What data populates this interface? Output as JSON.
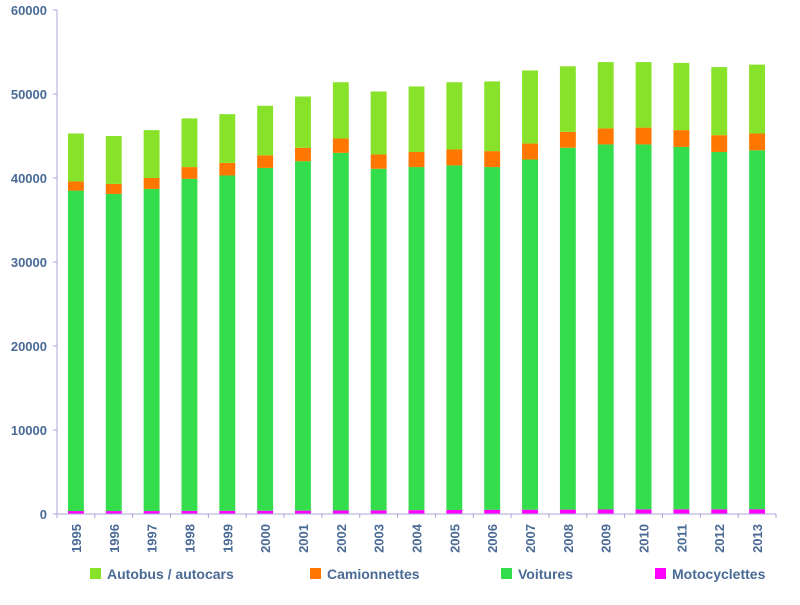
{
  "chart_data": {
    "type": "bar",
    "stacked": true,
    "title": "",
    "xlabel": "",
    "ylabel": "",
    "ylim": [
      0,
      60000
    ],
    "yticks": [
      0,
      10000,
      20000,
      30000,
      40000,
      50000,
      60000
    ],
    "grid": false,
    "legend_position": "bottom",
    "categories": [
      "1995",
      "1996",
      "1997",
      "1998",
      "1999",
      "2000",
      "2001",
      "2002",
      "2003",
      "2004",
      "2005",
      "2006",
      "2007",
      "2008",
      "2009",
      "2010",
      "2011",
      "2012",
      "2013"
    ],
    "series": [
      {
        "name": "Motocyclettes",
        "color": "#ff00ff",
        "values": [
          350,
          350,
          350,
          370,
          380,
          390,
          400,
          420,
          440,
          460,
          480,
          500,
          510,
          520,
          540,
          550,
          560,
          560,
          570
        ]
      },
      {
        "name": "Voitures",
        "color": "#33dd4c",
        "values": [
          38150,
          37750,
          38350,
          39530,
          39920,
          40810,
          41600,
          42580,
          40660,
          40840,
          41020,
          40800,
          41690,
          43080,
          43460,
          43450,
          43140,
          42540,
          42730
        ]
      },
      {
        "name": "Camionnettes",
        "color": "#ff7700",
        "values": [
          1100,
          1200,
          1300,
          1400,
          1500,
          1500,
          1600,
          1700,
          1700,
          1800,
          1900,
          1900,
          1900,
          1900,
          1900,
          2000,
          2000,
          2000,
          2000
        ]
      },
      {
        "name": "Autobus / autocars",
        "color": "#88e22a",
        "values": [
          5700,
          5700,
          5700,
          5800,
          5800,
          5900,
          6100,
          6700,
          7500,
          7800,
          8000,
          8300,
          8700,
          7800,
          7900,
          7800,
          8000,
          8100,
          8200
        ]
      }
    ],
    "legend_order": [
      "Autobus / autocars",
      "Camionnettes",
      "Voitures",
      "Motocyclettes"
    ]
  }
}
